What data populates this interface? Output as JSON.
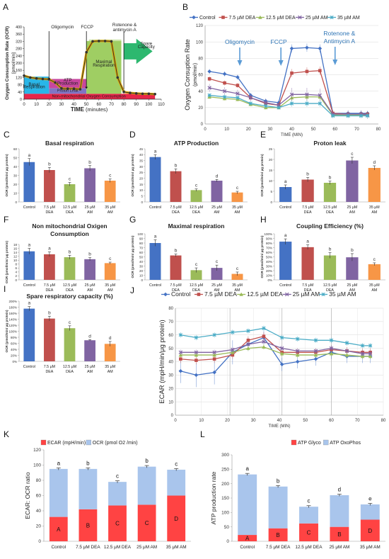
{
  "chart_data": [
    {
      "id": "A",
      "panel_letter": "A",
      "type": "line",
      "ylabel": "Oxygen Consumption Rate (OCR)",
      "ylabel2": "[pmol/min]",
      "xlabel": "TIME",
      "xlabel_unit": "(minutes)",
      "xlim": [
        0,
        110
      ],
      "ylim": [
        0,
        400
      ],
      "xticks": [
        0,
        10,
        20,
        30,
        40,
        50,
        60,
        70,
        80,
        90,
        100,
        110
      ],
      "yticks": [
        0,
        40,
        80,
        120,
        160,
        200,
        240,
        280,
        320,
        360,
        400
      ],
      "x": [
        0,
        5,
        10,
        15,
        20,
        25,
        30,
        35,
        40,
        45,
        50,
        55,
        60,
        65,
        70,
        75,
        80,
        85,
        90,
        95,
        100,
        105
      ],
      "values": [
        130,
        120,
        115,
        112,
        110,
        92,
        60,
        58,
        58,
        55,
        260,
        320,
        322,
        322,
        320,
        120,
        40,
        35,
        32,
        30,
        30,
        28
      ],
      "region_labels": [
        "Basal Respiration",
        "ATP Production",
        "Maximal Respiration",
        "Spare Capacity",
        "Proton Leak",
        "Non-mitochondrial Oxygen Consumption"
      ],
      "injections": [
        "Oligomycin",
        "FCCP",
        "Rotenone & antimycin A"
      ],
      "injection_x": [
        20,
        50,
        80
      ],
      "region_colors": [
        "#29b6e8",
        "#c7469e",
        "#9fce63",
        "#2db86f",
        "#8075c4",
        "#e7264a"
      ]
    },
    {
      "id": "B",
      "panel_letter": "B",
      "type": "line",
      "ylabel": "Oxygen Consuption Rate",
      "ylabel2": "(pmol/min)",
      "xlabel": "TIME (MIN)",
      "xlim": [
        0,
        80
      ],
      "ylim": [
        0,
        120
      ],
      "xticks": [
        0,
        10,
        20,
        30,
        40,
        50,
        60,
        70,
        80
      ],
      "yticks": [
        0,
        20,
        40,
        60,
        80,
        100,
        120
      ],
      "x": [
        2,
        9,
        15,
        21,
        28,
        34,
        40,
        47,
        53,
        59,
        66,
        72,
        75
      ],
      "series": [
        {
          "name": "Control",
          "color": "#4472c4",
          "marker": "diamond",
          "values": [
            64,
            61,
            57,
            35,
            28,
            26,
            92,
            93,
            92,
            13,
            13,
            13,
            13
          ]
        },
        {
          "name": "7.5 µM DEA",
          "color": "#c0504d",
          "marker": "square",
          "values": [
            55,
            50,
            47,
            32,
            25,
            23,
            62,
            64,
            65,
            13,
            12,
            12,
            12
          ]
        },
        {
          "name": "12.5 µM DEA",
          "color": "#9bbb59",
          "marker": "triangle",
          "values": [
            33,
            31,
            30,
            24,
            20,
            20,
            32,
            33,
            33,
            11,
            11,
            11,
            11
          ]
        },
        {
          "name": "25 µM AM",
          "color": "#8064a2",
          "marker": "x",
          "values": [
            44,
            40,
            37,
            32,
            26,
            23,
            36,
            36,
            35,
            12,
            12,
            12,
            11
          ]
        },
        {
          "name": "35 µM AM",
          "color": "#4bacc6",
          "marker": "star",
          "values": [
            35,
            33,
            32,
            25,
            22,
            20,
            25,
            25,
            25,
            10,
            10,
            10,
            10
          ]
        }
      ],
      "annotations": [
        "Oligomycin",
        "FCCP",
        "Rotenone &",
        "Antimycin A"
      ],
      "arrow_x": [
        16,
        35,
        60
      ]
    },
    {
      "id": "C",
      "panel_letter": "C",
      "type": "bar",
      "title": "Basal respiration",
      "ylabel": "OCR (pmol/min/ μg protein)",
      "ylim": [
        0,
        60
      ],
      "yticks": [
        0,
        10,
        20,
        30,
        40,
        50,
        60
      ],
      "categories": [
        "Control",
        "7.5 μM DEA",
        "12.5 μM DEA",
        "25 μM AM",
        "35 μM AM"
      ],
      "values": [
        45,
        36,
        20,
        38,
        24
      ],
      "errors": [
        4,
        3,
        2,
        3,
        2
      ],
      "letters": [
        "a",
        "b",
        "c",
        "b",
        "c"
      ]
    },
    {
      "id": "D",
      "panel_letter": "D",
      "type": "bar",
      "title": "ATP Production",
      "ylabel": "OCR (pmol/min/ μg protein)",
      "ylim": [
        0,
        45
      ],
      "yticks": [
        0,
        5,
        10,
        15,
        20,
        25,
        30,
        35,
        40,
        45
      ],
      "categories": [
        "Control",
        "7.5 μM DEA",
        "12.5 μM DEA",
        "25 μM AM",
        "35 μM AM"
      ],
      "values": [
        38,
        26,
        10,
        18,
        8
      ],
      "errors": [
        2,
        2,
        1,
        1,
        1
      ],
      "letters": [
        "a",
        "b",
        "c",
        "d",
        "c"
      ]
    },
    {
      "id": "E",
      "panel_letter": "E",
      "type": "bar",
      "title": "Proton leak",
      "ylabel": "OCR (pmol/min/ μg protein)",
      "ylim": [
        0,
        25
      ],
      "yticks": [
        0,
        5,
        10,
        15,
        20,
        25
      ],
      "categories": [
        "Control",
        "7.5 μM DEA",
        "12.5 μM DEA",
        "25 μM AM",
        "35 μM AM"
      ],
      "values": [
        7,
        10.5,
        9,
        19.5,
        16
      ],
      "errors": [
        1,
        1,
        0.8,
        1.5,
        1
      ],
      "letters": [
        "a",
        "b",
        "b",
        "c",
        "d"
      ]
    },
    {
      "id": "F",
      "panel_letter": "F",
      "type": "bar",
      "title": "Non mitochondrial Oxigen",
      "title2": "Consumption",
      "ylabel": "OCR (pmol/min/ μg protein)",
      "ylim": [
        0,
        18
      ],
      "yticks": [
        0,
        2,
        4,
        6,
        8,
        10,
        12,
        14,
        16,
        18
      ],
      "categories": [
        "Control",
        "7.5 μM DEA",
        "12.5 μM DEA",
        "25 μM AM",
        "35 μM AM"
      ],
      "values": [
        14.5,
        13,
        11.5,
        10.5,
        8.5
      ],
      "errors": [
        1.5,
        1.2,
        1,
        0.8,
        0.5
      ],
      "letters": [
        "a",
        "a",
        "b",
        "b",
        "c"
      ]
    },
    {
      "id": "G",
      "panel_letter": "G",
      "type": "bar",
      "title": "Maximal respiration",
      "ylabel": "OCR (pmol/min/ μg protein)",
      "ylim": [
        0,
        100
      ],
      "yticks": [
        0,
        10,
        20,
        30,
        40,
        50,
        60,
        70,
        80,
        90,
        100
      ],
      "categories": [
        "Control",
        "7.5 μM DEA",
        "12.5 μM DEA",
        "25 μM AM",
        "35 μM AM"
      ],
      "values": [
        80,
        53,
        21,
        26,
        13
      ],
      "errors": [
        7,
        3,
        5,
        6,
        4
      ],
      "letters": [
        "a",
        "b",
        "c",
        "c",
        "c"
      ]
    },
    {
      "id": "H",
      "panel_letter": "H",
      "type": "bar",
      "title": "Coupling Efficiency (%)",
      "ylabel": "OCR (pmol/min/ μg protein)",
      "ylim": [
        0,
        1
      ],
      "yticks": [
        0,
        0.1,
        0.2,
        0.3,
        0.4,
        0.5,
        0.6,
        0.7,
        0.8,
        0.9,
        1
      ],
      "ytick_format": "percent",
      "categories": [
        "Control",
        "7.5 μM DEA",
        "12.5 μM DEA",
        "25 μM AM",
        "35 μM AM"
      ],
      "values": [
        0.83,
        0.71,
        0.53,
        0.49,
        0.34
      ],
      "errors": [
        0.06,
        0.05,
        0.06,
        0.08,
        0.03
      ],
      "letters": [
        "a",
        "a",
        "b",
        "b",
        "c"
      ]
    },
    {
      "id": "I",
      "panel_letter": "I",
      "type": "bar",
      "title": "Spare respiratory capacity (%)",
      "ylabel": "OCR (pmol/min/ μg protein)",
      "ylim": [
        0,
        2
      ],
      "yticks": [
        0,
        0.2,
        0.4,
        0.6,
        0.8,
        1,
        1.2,
        1.4,
        1.6,
        1.8,
        2
      ],
      "ytick_format": "percent",
      "categories": [
        "Control",
        "7.5 μM DEA",
        "12.5 μM DEA",
        "25 μM AM",
        "35 μM AM"
      ],
      "values": [
        1.75,
        1.42,
        1.1,
        0.7,
        0.58
      ],
      "errors": [
        0.07,
        0.08,
        0.08,
        0.02,
        0.08
      ],
      "letters": [
        "a",
        "b",
        "c",
        "d",
        "d"
      ]
    },
    {
      "id": "J",
      "panel_letter": "J",
      "type": "line",
      "ylabel": "ECAR (mpH/min/μg protein)",
      "xlabel": "TIME (MIN)",
      "xlim": [
        0,
        80
      ],
      "ylim": [
        0,
        80
      ],
      "xticks": [
        0,
        10,
        20,
        30,
        40,
        50,
        60,
        70,
        80
      ],
      "yticks": [
        0,
        10,
        20,
        30,
        40,
        50,
        60,
        70,
        80
      ],
      "vlines": [
        21,
        41,
        60
      ],
      "x": [
        2,
        8,
        15,
        22,
        28,
        34,
        41,
        47,
        54,
        60,
        66,
        72,
        75
      ],
      "series": [
        {
          "name": "Control",
          "color": "#4472c4",
          "marker": "diamond",
          "values": [
            33,
            30,
            32,
            47,
            53,
            58,
            38,
            40,
            42,
            47,
            44,
            44,
            44
          ]
        },
        {
          "name": "7.5 µM DEA",
          "color": "#c0504d",
          "marker": "square",
          "values": [
            42,
            41,
            42,
            45,
            56,
            59,
            47,
            47,
            47,
            49,
            48,
            47,
            47
          ]
        },
        {
          "name": "12.5 µM DEA",
          "color": "#9bbb59",
          "marker": "triangle",
          "values": [
            45,
            45,
            45,
            47,
            50,
            51,
            46,
            45,
            45,
            46,
            45,
            44,
            44
          ]
        },
        {
          "name": "25 µM AM",
          "color": "#8064a2",
          "marker": "x",
          "values": [
            47,
            47,
            47,
            49,
            53,
            55,
            50,
            48,
            48,
            50,
            48,
            46,
            46
          ]
        },
        {
          "name": "35 µM AM",
          "color": "#4bacc6",
          "marker": "star",
          "values": [
            60,
            58,
            60,
            62,
            63,
            65,
            58,
            57,
            56,
            56,
            54,
            52,
            52
          ]
        }
      ]
    },
    {
      "id": "K",
      "panel_letter": "K",
      "type": "bar",
      "stacked": true,
      "ylabel": "ECAR: OCR ratio",
      "ylim": [
        0,
        120
      ],
      "yticks": [
        0,
        20,
        40,
        60,
        80,
        100,
        120
      ],
      "categories": [
        "Control",
        "7.5 μM DEA",
        "12.5 μM DEA",
        "25 μM AM",
        "35 μM AM"
      ],
      "series": [
        {
          "name": "ECAR (mpH/min)",
          "color": "#ff4343",
          "values": [
            32,
            42,
            47,
            48,
            60
          ],
          "letters": [
            "A",
            "B",
            "C",
            "C",
            "D"
          ]
        },
        {
          "name": "OCR (pmol O2 /min)",
          "color": "#a9c5ec",
          "values": [
            63,
            53,
            31,
            50,
            34
          ],
          "letters": [
            "a",
            "b",
            "c",
            "b",
            "c"
          ]
        }
      ]
    },
    {
      "id": "L",
      "panel_letter": "L",
      "type": "bar",
      "stacked": true,
      "ylabel": "ATP production rate",
      "ylim": [
        0,
        300
      ],
      "yticks": [
        0,
        50,
        100,
        150,
        200,
        250,
        300
      ],
      "categories": [
        "Control",
        "7.5 μM DEA",
        "12.5 μM DEA",
        "25 μM AM",
        "35 μM AM"
      ],
      "series": [
        {
          "name": "ATP Glyco",
          "color": "#ff4343",
          "values": [
            22,
            45,
            62,
            50,
            75
          ],
          "letters": [
            "A",
            "B",
            "C",
            "B",
            "D"
          ]
        },
        {
          "name": "ATP OxoPhos",
          "color": "#a9c5ec",
          "values": [
            210,
            145,
            58,
            110,
            53
          ],
          "letters": [
            "a",
            "b",
            "c",
            "d",
            "e"
          ]
        }
      ]
    }
  ]
}
